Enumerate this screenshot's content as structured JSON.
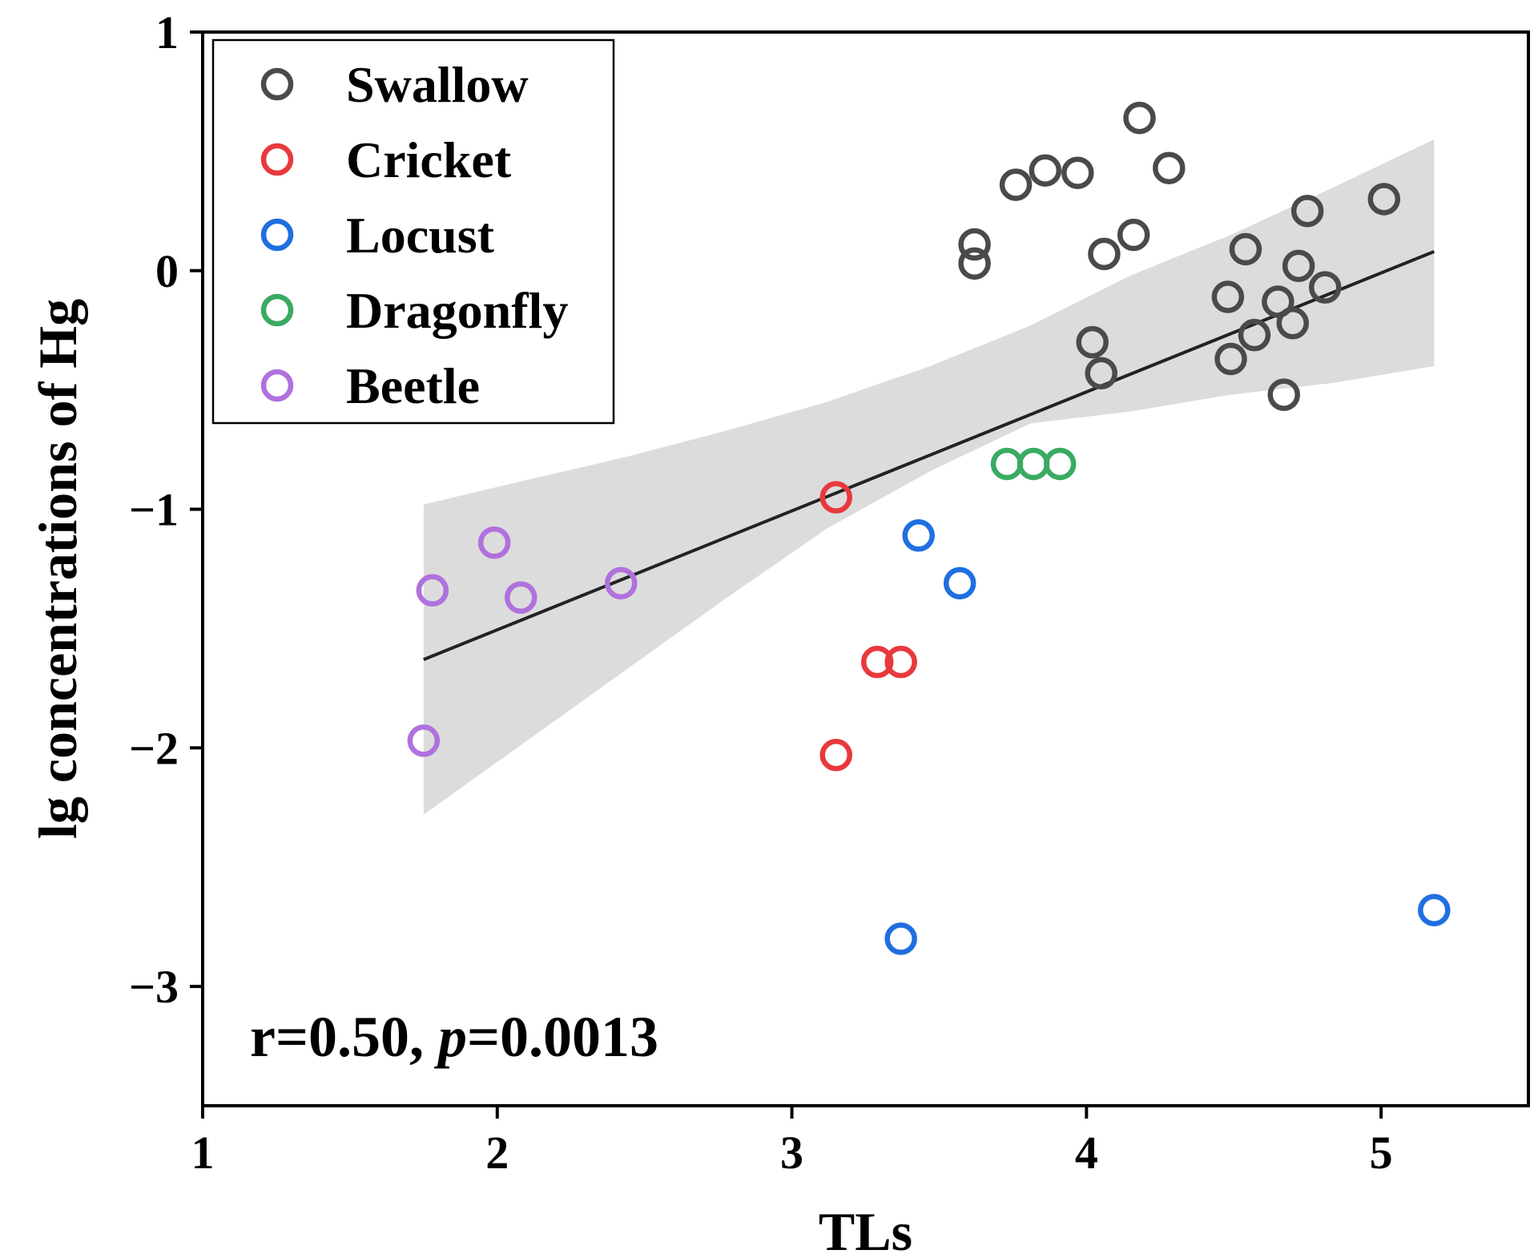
{
  "chart_data": {
    "type": "scatter",
    "xlabel": "TLs",
    "ylabel": "lg concentrations of Hg",
    "xlim": [
      1,
      5.5
    ],
    "ylim": [
      -3.5,
      1
    ],
    "xticks": [
      1,
      2,
      3,
      4,
      5
    ],
    "yticks": [
      1,
      0,
      -1,
      -2,
      -3
    ],
    "xtick_labels": [
      "1",
      "2",
      "3",
      "4",
      "5"
    ],
    "ytick_labels": [
      "1",
      "0",
      "−1",
      "−2",
      "−3"
    ],
    "grid": false,
    "legend_position": "top-left",
    "series": [
      {
        "name": "Swallow",
        "color": "#4a4a4a",
        "points": [
          [
            3.62,
            0.03
          ],
          [
            3.62,
            0.11
          ],
          [
            3.76,
            0.36
          ],
          [
            3.86,
            0.42
          ],
          [
            3.97,
            0.41
          ],
          [
            4.18,
            0.64
          ],
          [
            4.28,
            0.43
          ],
          [
            4.16,
            0.15
          ],
          [
            4.06,
            0.07
          ],
          [
            4.02,
            -0.3
          ],
          [
            4.05,
            -0.43
          ],
          [
            4.54,
            0.09
          ],
          [
            4.75,
            0.25
          ],
          [
            5.01,
            0.3
          ],
          [
            4.72,
            0.02
          ],
          [
            4.81,
            -0.07
          ],
          [
            4.48,
            -0.11
          ],
          [
            4.65,
            -0.13
          ],
          [
            4.7,
            -0.22
          ],
          [
            4.57,
            -0.27
          ],
          [
            4.49,
            -0.37
          ],
          [
            4.67,
            -0.52
          ]
        ]
      },
      {
        "name": "Cricket",
        "color": "#e8393d",
        "points": [
          [
            3.15,
            -0.95
          ],
          [
            3.29,
            -1.64
          ],
          [
            3.37,
            -1.64
          ],
          [
            3.15,
            -2.03
          ]
        ]
      },
      {
        "name": "Locust",
        "color": "#1f6fe0",
        "points": [
          [
            3.43,
            -1.11
          ],
          [
            3.57,
            -1.31
          ],
          [
            3.37,
            -2.8
          ],
          [
            5.18,
            -2.68
          ]
        ]
      },
      {
        "name": "Dragonfly",
        "color": "#3aaa62",
        "points": [
          [
            3.73,
            -0.81
          ],
          [
            3.82,
            -0.81
          ],
          [
            3.91,
            -0.81
          ]
        ]
      },
      {
        "name": "Beetle",
        "color": "#b071dd",
        "points": [
          [
            1.99,
            -1.14
          ],
          [
            1.78,
            -1.34
          ],
          [
            2.08,
            -1.37
          ],
          [
            2.42,
            -1.31
          ],
          [
            1.75,
            -1.97
          ]
        ]
      }
    ],
    "regression": {
      "x": [
        1.75,
        5.18
      ],
      "y": [
        -1.63,
        0.08
      ],
      "ci_x": [
        1.75,
        2.09,
        2.44,
        2.78,
        3.12,
        3.47,
        3.81,
        4.15,
        4.49,
        4.84,
        5.18
      ],
      "ci_upper": [
        -0.98,
        -0.88,
        -0.78,
        -0.67,
        -0.55,
        -0.4,
        -0.23,
        -0.02,
        0.15,
        0.35,
        0.55
      ],
      "ci_lower": [
        -2.28,
        -1.98,
        -1.67,
        -1.37,
        -1.08,
        -0.84,
        -0.64,
        -0.59,
        -0.52,
        -0.47,
        -0.4
      ],
      "line_color": "#222222",
      "band_color": "#dcdcdc"
    },
    "annotation": {
      "r_part": "r=0.50, ",
      "p_symbol": "p",
      "p_part": "=0.0013"
    }
  }
}
